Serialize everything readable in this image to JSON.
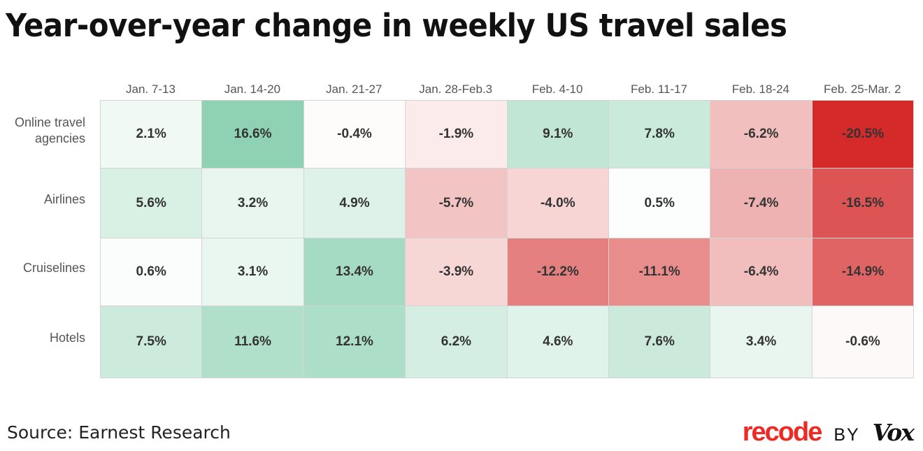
{
  "title": "Year-over-year change in weekly US travel sales",
  "source": "Source: Earnest Research",
  "logo": {
    "recode": "recode",
    "by": "BY",
    "vox": "Vox"
  },
  "colors": {
    "positive_max": "#8fd2b3",
    "negative_max": "#d42a2a",
    "neutral": "#ffffff"
  },
  "chart_data": {
    "type": "heatmap",
    "title": "Year-over-year change in weekly US travel sales",
    "columns": [
      "Jan. 7-13",
      "Jan. 14-20",
      "Jan. 21-27",
      "Jan. 28-Feb.3",
      "Feb. 4-10",
      "Feb. 11-17",
      "Feb. 18-24",
      "Feb. 25-Mar. 2"
    ],
    "rows": [
      "Online travel agencies",
      "Airlines",
      "Cruiselines",
      "Hotels"
    ],
    "row_labels_display": [
      [
        "Online travel",
        "agencies"
      ],
      [
        "Airlines"
      ],
      [
        "Cruiselines"
      ],
      [
        "Hotels"
      ]
    ],
    "values": [
      [
        2.1,
        16.6,
        -0.4,
        -1.9,
        9.1,
        7.8,
        -6.2,
        -20.5
      ],
      [
        5.6,
        3.2,
        4.9,
        -5.7,
        -4.0,
        0.5,
        -7.4,
        -16.5
      ],
      [
        0.6,
        3.1,
        13.4,
        -3.9,
        -12.2,
        -11.1,
        -6.4,
        -14.9
      ],
      [
        7.5,
        11.6,
        12.1,
        6.2,
        4.6,
        7.6,
        3.4,
        -0.6
      ]
    ],
    "labels": [
      [
        "2.1%",
        "16.6%",
        "-0.4%",
        "-1.9%",
        "9.1%",
        "7.8%",
        "-6.2%",
        "-20.5%"
      ],
      [
        "5.6%",
        "3.2%",
        "4.9%",
        "-5.7%",
        "-4.0%",
        "0.5%",
        "-7.4%",
        "-16.5%"
      ],
      [
        "0.6%",
        "3.1%",
        "13.4%",
        "-3.9%",
        "-12.2%",
        "-11.1%",
        "-6.4%",
        "-14.9%"
      ],
      [
        "7.5%",
        "11.6%",
        "12.1%",
        "6.2%",
        "4.6%",
        "7.6%",
        "3.4%",
        "-0.6%"
      ]
    ],
    "unit": "%"
  }
}
